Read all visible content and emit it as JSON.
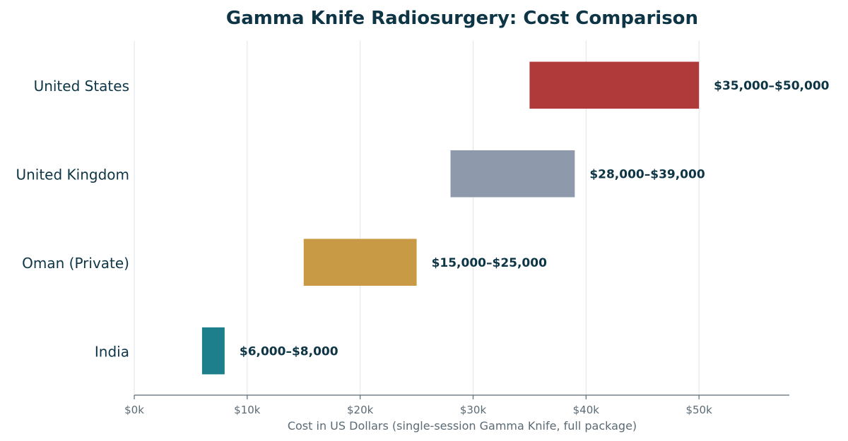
{
  "chart_data": {
    "type": "bar",
    "orientation": "horizontal-range",
    "title": "Gamma Knife Radiosurgery: Cost Comparison",
    "xlabel": "Cost in US Dollars (single-session Gamma Knife, full package)",
    "ylabel": "",
    "xlim": [
      0,
      58000
    ],
    "xticks": [
      0,
      10000,
      20000,
      30000,
      40000,
      50000
    ],
    "xtick_labels": [
      "$0k",
      "$10k",
      "$20k",
      "$30k",
      "$40k",
      "$50k"
    ],
    "grid": "vertical",
    "legend": "none",
    "categories": [
      "United States",
      "United Kingdom",
      "Oman (Private)",
      "India"
    ],
    "ranges": [
      {
        "low": 35000,
        "high": 50000,
        "label": "$35,000–$50,000",
        "color": "#b03a3a"
      },
      {
        "low": 28000,
        "high": 39000,
        "label": "$28,000–$39,000",
        "color": "#8e9aab"
      },
      {
        "low": 15000,
        "high": 25000,
        "label": "$15,000–$25,000",
        "color": "#c99a45"
      },
      {
        "low": 6000,
        "high": 8000,
        "label": "$6,000–$8,000",
        "color": "#1e7f8c"
      }
    ]
  }
}
